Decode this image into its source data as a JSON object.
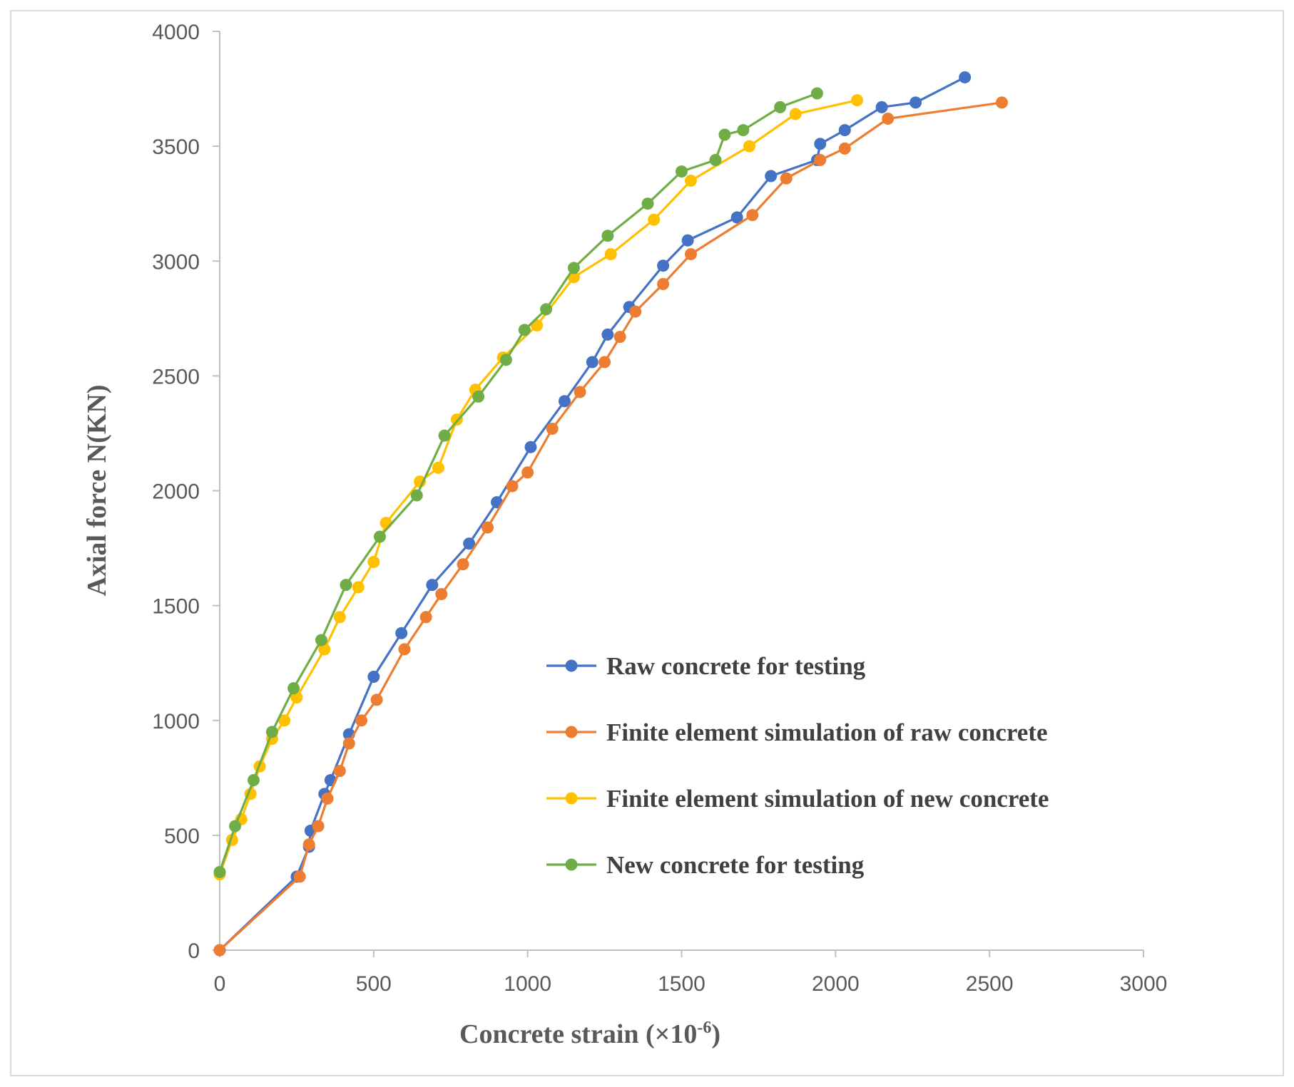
{
  "chart_data": {
    "type": "line",
    "title": "",
    "xlabel": "Concrete strain (×10",
    "xlabel_exp": "-6",
    "xlabel_close": ")",
    "ylabel": "Axial force N(KN)",
    "xlim": [
      0,
      3000
    ],
    "ylim": [
      0,
      4000
    ],
    "x_ticks": [
      "0",
      "500",
      "1000",
      "1500",
      "2000",
      "2500",
      "3000"
    ],
    "y_ticks": [
      "0",
      "500",
      "1000",
      "1500",
      "2000",
      "2500",
      "3000",
      "3500",
      "4000"
    ],
    "x_tick_values": [
      0,
      500,
      1000,
      1500,
      2000,
      2500,
      3000
    ],
    "y_tick_values": [
      0,
      500,
      1000,
      1500,
      2000,
      2500,
      3000,
      3500,
      4000
    ],
    "grid": false,
    "legend_position": "center-right",
    "series": [
      {
        "name": "Raw concrete for testing",
        "color": "#4472C4",
        "x": [
          0,
          250,
          290,
          295,
          340,
          360,
          420,
          500,
          590,
          690,
          810,
          900,
          1010,
          1120,
          1210,
          1260,
          1330,
          1440,
          1520,
          1680,
          1790,
          1940,
          1950,
          2030,
          2150,
          2260,
          2420
        ],
        "y": [
          0,
          320,
          450,
          520,
          680,
          740,
          940,
          1190,
          1380,
          1590,
          1770,
          1950,
          2190,
          2390,
          2560,
          2680,
          2800,
          2980,
          3090,
          3190,
          3370,
          3440,
          3510,
          3570,
          3670,
          3690,
          3800
        ]
      },
      {
        "name": "Finite element simulation of raw concrete",
        "color": "#ED7D31",
        "x": [
          0,
          260,
          290,
          320,
          350,
          390,
          420,
          460,
          510,
          600,
          670,
          720,
          790,
          870,
          950,
          1000,
          1080,
          1170,
          1250,
          1300,
          1350,
          1440,
          1530,
          1730,
          1840,
          1950,
          2030,
          2170,
          2540
        ],
        "y": [
          0,
          320,
          460,
          540,
          660,
          780,
          900,
          1000,
          1090,
          1310,
          1450,
          1550,
          1680,
          1840,
          2020,
          2080,
          2270,
          2430,
          2560,
          2670,
          2780,
          2900,
          3030,
          3200,
          3360,
          3440,
          3490,
          3620,
          3690
        ]
      },
      {
        "name": "Finite element simulation of new concrete",
        "color": "#FFC000",
        "x": [
          0,
          40,
          70,
          100,
          130,
          170,
          210,
          250,
          340,
          390,
          450,
          500,
          540,
          650,
          710,
          770,
          830,
          920,
          1030,
          1150,
          1270,
          1410,
          1530,
          1720,
          1870,
          2070
        ],
        "y": [
          330,
          480,
          570,
          680,
          800,
          920,
          1000,
          1100,
          1310,
          1450,
          1580,
          1690,
          1860,
          2040,
          2100,
          2310,
          2440,
          2580,
          2720,
          2930,
          3030,
          3180,
          3350,
          3500,
          3640,
          3700
        ]
      },
      {
        "name": "New concrete for testing",
        "color": "#70AD47",
        "x": [
          0,
          50,
          110,
          170,
          240,
          330,
          410,
          520,
          640,
          730,
          840,
          930,
          990,
          1060,
          1150,
          1260,
          1390,
          1500,
          1610,
          1640,
          1700,
          1820,
          1940
        ],
        "y": [
          340,
          540,
          740,
          950,
          1140,
          1350,
          1590,
          1800,
          1980,
          2240,
          2410,
          2570,
          2700,
          2790,
          2970,
          3110,
          3250,
          3390,
          3440,
          3550,
          3570,
          3670,
          3730
        ]
      }
    ]
  }
}
